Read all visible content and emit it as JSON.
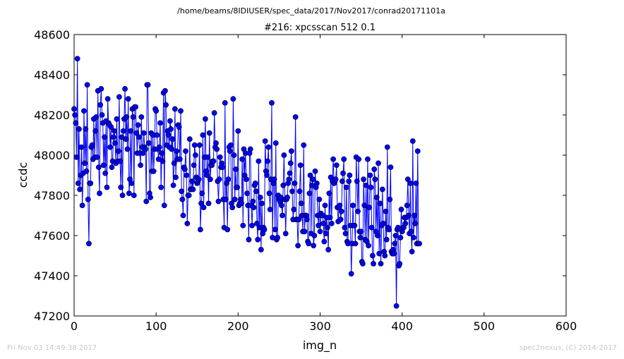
{
  "suptitle": "/home/beams/8IDIUSER/spec_data/2017/Nov2017/conrad20171101a",
  "footer_left": "Fri Nov 03 14:49:38 2017",
  "footer_right": "spec2nexus, (C) 2014-2017",
  "colors": {
    "series": "#0000ff",
    "footer": "#c8c8c8"
  },
  "chart_data": {
    "type": "line",
    "title": "#216: xpcsscan 512 0.1",
    "xlabel": "img_n",
    "ylabel": "ccdc",
    "xlim": [
      0,
      600
    ],
    "ylim": [
      47200,
      48600
    ],
    "xticks": [
      0,
      100,
      200,
      300,
      400,
      500,
      600
    ],
    "yticks": [
      47200,
      47400,
      47600,
      47800,
      48000,
      48200,
      48400,
      48600
    ],
    "grid": false,
    "legend": "none",
    "marker": "circle",
    "x_start": 0,
    "x_step": 1,
    "series": [
      {
        "values": [
          48230,
          48200,
          48160,
          47990,
          48480,
          47860,
          48130,
          47830,
          47900,
          48040,
          47750,
          47910,
          48220,
          47960,
          48130,
          47920,
          48350,
          47780,
          47560,
          47860,
          47860,
          48040,
          48050,
          47980,
          48180,
          47990,
          48120,
          48190,
          47990,
          48320,
          47940,
          47810,
          48250,
          48330,
          48200,
          48160,
          47950,
          48090,
          47910,
          48170,
          47840,
          48280,
          48160,
          48150,
          48040,
          48140,
          47940,
          47970,
          48090,
          48120,
          48060,
          47960,
          48180,
          47970,
          48020,
          48290,
          47970,
          47840,
          48090,
          47800,
          48120,
          48180,
          48330,
          48080,
          48190,
          48030,
          48280,
          47810,
          47880,
          48120,
          47860,
          48230,
          48190,
          47800,
          48240,
          48240,
          48110,
          48010,
          48150,
          48090,
          48010,
          47950,
          48190,
          48040,
          48010,
          48110,
          48040,
          48030,
          47770,
          48350,
          48350,
          48060,
          47810,
          47790,
          48110,
          47920,
          48100,
          47920,
          48030,
          48230,
          48220,
          48100,
          48030,
          47980,
          48040,
          48160,
          47840,
          48010,
          47970,
          48310,
          47750,
          48320,
          48250,
          48050,
          48120,
          48100,
          48040,
          48170,
          48130,
          48030,
          48080,
          47850,
          47960,
          48230,
          47890,
          48020,
          47980,
          48150,
          48140,
          47980,
          48220,
          47820,
          47780,
          47700,
          47940,
          47930,
          48020,
          47900,
          47660,
          47800,
          47800,
          48080,
          47830,
          47830,
          47870,
          47830,
          47950,
          48050,
          48000,
          47890,
          47860,
          47870,
          47880,
          48050,
          47630,
          47760,
          47810,
          48100,
          47740,
          47990,
          48180,
          47920,
          47900,
          47990,
          47760,
          48110,
          47880,
          47950,
          47950,
          47970,
          47970,
          48210,
          48040,
          48060,
          48030,
          47870,
          47770,
          47880,
          47990,
          47940,
          47960,
          47940,
          47780,
          47640,
          48260,
          47780,
          47860,
          47630,
          47880,
          48040,
          48020,
          48050,
          47760,
          47740,
          48280,
          48000,
          47780,
          47930,
          47840,
          47840,
          48120,
          47750,
          47760,
          47780,
          47760,
          47980,
          47650,
          48030,
          47900,
          48010,
          47880,
          47810,
          47750,
          47580,
          48010,
          48030,
          47750,
          47650,
          47770,
          47740,
          47850,
          47860,
          47820,
          47660,
          47580,
          47970,
          47640,
          47790,
          47530,
          47760,
          47610,
          47640,
          47630,
          48070,
          47920,
          47900,
          47970,
          48040,
          47810,
          47730,
          47880,
          48260,
          47590,
          47860,
          47880,
          47630,
          48060,
          47580,
          47590,
          47800,
          47780,
          47770,
          47790,
          47750,
          47700,
          47850,
          48000,
          47780,
          47610,
          47780,
          47790,
          47860,
          47880,
          47910,
          47960,
          48020,
          47820,
          47680,
          47730,
          47860,
          48190,
          47680,
          47680,
          47550,
          47680,
          47820,
          47950,
          47760,
          47700,
          47620,
          48050,
          47620,
          47700,
          47700,
          47680,
          47570,
          47560,
          47810,
          47900,
          47610,
          47850,
          47880,
          47550,
          47600,
          47920,
          47840,
          47860,
          47700,
          47650,
          47780,
          47620,
          47710,
          47700,
          47700,
          47660,
          47570,
          47750,
          47610,
          47690,
          47640,
          47530,
          47810,
          47690,
          47890,
          47660,
          47870,
          47980,
          47860,
          47870,
          47880,
          47950,
          47740,
          47670,
          47740,
          47750,
          47680,
          47720,
          47870,
          47910,
          47980,
          47640,
          47610,
          47840,
          47570,
          47560,
          47870,
          47900,
          47650,
          47410,
          47560,
          47750,
          47650,
          47650,
          47560,
          47990,
          47870,
          47720,
          47980,
          47620,
          47590,
          47620,
          47470,
          47460,
          47880,
          47750,
          47580,
          47850,
          47570,
          47980,
          47550,
          47740,
          47900,
          47840,
          47640,
          47500,
          47460,
          47930,
          47880,
          47620,
          47790,
          47600,
          47960,
          47510,
          47760,
          47460,
          47650,
          47830,
          47660,
          47520,
          47500,
          47720,
          47580,
          48040,
          47640,
          47630,
          47780,
          47940,
          47520,
          47510,
          47530,
          47510,
          47560,
          47600,
          47250,
          47630,
          47640,
          47450,
          47460,
          47590,
          47730,
          47620,
          47640,
          47640,
          47690,
          47660,
          47690,
          47750,
          47880,
          47700,
          47610,
          47860,
          47620,
          47520,
          48070,
          47590,
          47700,
          47660,
          47860,
          47560,
          48020,
          47560,
          47560
        ]
      }
    ]
  }
}
